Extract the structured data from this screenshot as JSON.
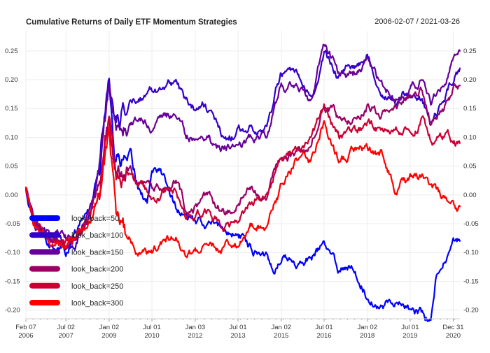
{
  "chart_data": {
    "type": "line",
    "title": "Cumulative Returns of Daily ETF Momentum Strategies",
    "date_range": "2006-02-07 / 2021-03-26",
    "xlabel": "",
    "ylabel": "",
    "ylim": [
      -0.215,
      0.285
    ],
    "y_ticks": [
      {
        "value": -0.2,
        "label": "-0.20"
      },
      {
        "value": -0.15,
        "label": "-0.15"
      },
      {
        "value": -0.1,
        "label": "-0.10"
      },
      {
        "value": -0.05,
        "label": "-0.05"
      },
      {
        "value": 0.0,
        "label": "0.00"
      },
      {
        "value": 0.05,
        "label": "0.05"
      },
      {
        "value": 0.1,
        "label": "0.10"
      },
      {
        "value": 0.15,
        "label": "0.15"
      },
      {
        "value": 0.2,
        "label": "0.20"
      },
      {
        "value": 0.25,
        "label": "0.25"
      }
    ],
    "x_start": "2006-02-07",
    "x_end": "2021-03-26",
    "x_ticks": [
      {
        "value": "2006-02-07",
        "line1": "Feb 07",
        "line2": "2006"
      },
      {
        "value": "2007-07-02",
        "line1": "Jul 02",
        "line2": "2007"
      },
      {
        "value": "2009-01-02",
        "line1": "Jan 02",
        "line2": "2009"
      },
      {
        "value": "2010-07-01",
        "line1": "Jul 01",
        "line2": "2010"
      },
      {
        "value": "2012-01-03",
        "line1": "Jan 03",
        "line2": "2012"
      },
      {
        "value": "2013-07-01",
        "line1": "Jul 01",
        "line2": "2013"
      },
      {
        "value": "2015-01-02",
        "line1": "Jan 02",
        "line2": "2015"
      },
      {
        "value": "2016-07-01",
        "line1": "Jul 01",
        "line2": "2016"
      },
      {
        "value": "2018-01-02",
        "line1": "Jan 02",
        "line2": "2018"
      },
      {
        "value": "2019-07-01",
        "line1": "Jul 01",
        "line2": "2019"
      },
      {
        "value": "2020-12-31",
        "line1": "Dec 31",
        "line2": "2020"
      }
    ],
    "legend_position": "bottom-left",
    "grid": true,
    "series": [
      {
        "name": "look_back=50",
        "color": "#0000ff",
        "points": [
          [
            "2006-02-07",
            0.01
          ],
          [
            "2006-05-01",
            -0.04
          ],
          [
            "2006-09-01",
            -0.07
          ],
          [
            "2007-01-02",
            -0.08
          ],
          [
            "2007-07-02",
            -0.1
          ],
          [
            "2007-11-01",
            -0.07
          ],
          [
            "2008-05-01",
            -0.02
          ],
          [
            "2008-09-01",
            0.05
          ],
          [
            "2008-11-20",
            0.17
          ],
          [
            "2009-01-02",
            0.21
          ],
          [
            "2009-03-10",
            0.08
          ],
          [
            "2009-07-01",
            0.06
          ],
          [
            "2010-01-04",
            0.01
          ],
          [
            "2010-05-01",
            -0.01
          ],
          [
            "2010-07-01",
            0.04
          ],
          [
            "2010-10-01",
            0.04
          ],
          [
            "2011-01-03",
            0.02
          ],
          [
            "2011-05-02",
            -0.02
          ],
          [
            "2011-09-01",
            -0.04
          ],
          [
            "2012-01-03",
            -0.05
          ],
          [
            "2012-07-02",
            -0.05
          ],
          [
            "2013-01-02",
            -0.06
          ],
          [
            "2013-07-01",
            -0.07
          ],
          [
            "2014-01-02",
            -0.09
          ],
          [
            "2014-07-01",
            -0.1
          ],
          [
            "2014-10-01",
            -0.13
          ],
          [
            "2015-01-02",
            -0.1
          ],
          [
            "2015-07-01",
            -0.12
          ],
          [
            "2016-01-04",
            -0.11
          ],
          [
            "2016-07-01",
            -0.09
          ],
          [
            "2017-01-03",
            -0.13
          ],
          [
            "2017-07-03",
            -0.12
          ],
          [
            "2018-01-02",
            -0.17
          ],
          [
            "2018-07-02",
            -0.19
          ],
          [
            "2019-01-02",
            -0.18
          ],
          [
            "2019-07-01",
            -0.2
          ],
          [
            "2019-12-01",
            -0.21
          ],
          [
            "2020-03-20",
            -0.22
          ],
          [
            "2020-06-01",
            -0.14
          ],
          [
            "2020-12-31",
            -0.09
          ],
          [
            "2021-03-26",
            -0.08
          ]
        ]
      },
      {
        "name": "look_back=100",
        "color": "#3300cc",
        "points": [
          [
            "2006-02-07",
            0.01
          ],
          [
            "2006-06-01",
            -0.04
          ],
          [
            "2006-09-01",
            -0.06
          ],
          [
            "2007-01-02",
            -0.07
          ],
          [
            "2007-07-02",
            -0.09
          ],
          [
            "2007-11-01",
            -0.08
          ],
          [
            "2008-05-01",
            -0.03
          ],
          [
            "2008-09-01",
            0.05
          ],
          [
            "2008-11-20",
            0.16
          ],
          [
            "2009-01-02",
            0.2
          ],
          [
            "2009-04-01",
            0.13
          ],
          [
            "2009-09-01",
            0.16
          ],
          [
            "2010-01-04",
            0.17
          ],
          [
            "2010-07-01",
            0.18
          ],
          [
            "2011-01-03",
            0.19
          ],
          [
            "2011-05-02",
            0.2
          ],
          [
            "2011-09-01",
            0.16
          ],
          [
            "2012-01-03",
            0.15
          ],
          [
            "2012-04-02",
            0.17
          ],
          [
            "2012-10-01",
            0.12
          ],
          [
            "2013-01-02",
            0.09
          ],
          [
            "2013-07-01",
            0.11
          ],
          [
            "2014-01-02",
            0.12
          ],
          [
            "2014-07-01",
            0.12
          ],
          [
            "2015-01-02",
            0.21
          ],
          [
            "2015-07-01",
            0.2
          ],
          [
            "2016-01-04",
            0.16
          ],
          [
            "2016-07-01",
            0.24
          ],
          [
            "2017-01-03",
            0.21
          ],
          [
            "2017-07-03",
            0.22
          ],
          [
            "2018-01-02",
            0.24
          ],
          [
            "2018-07-02",
            0.19
          ],
          [
            "2019-01-02",
            0.16
          ],
          [
            "2019-07-01",
            0.18
          ],
          [
            "2019-12-01",
            0.17
          ],
          [
            "2020-03-20",
            0.12
          ],
          [
            "2020-12-31",
            0.2
          ],
          [
            "2021-03-26",
            0.22
          ]
        ]
      },
      {
        "name": "look_back=150",
        "color": "#660099",
        "points": [
          [
            "2006-02-07",
            0.01
          ],
          [
            "2006-06-01",
            -0.05
          ],
          [
            "2006-09-01",
            -0.06
          ],
          [
            "2007-01-02",
            -0.07
          ],
          [
            "2007-07-02",
            -0.08
          ],
          [
            "2007-11-01",
            -0.07
          ],
          [
            "2008-05-01",
            -0.03
          ],
          [
            "2008-09-01",
            0.04
          ],
          [
            "2008-11-20",
            0.13
          ],
          [
            "2009-01-02",
            0.17
          ],
          [
            "2009-04-01",
            0.1
          ],
          [
            "2009-09-01",
            0.12
          ],
          [
            "2010-01-04",
            0.13
          ],
          [
            "2010-07-01",
            0.12
          ],
          [
            "2011-01-03",
            0.13
          ],
          [
            "2011-05-02",
            0.14
          ],
          [
            "2011-09-01",
            0.1
          ],
          [
            "2012-01-03",
            0.1
          ],
          [
            "2012-07-02",
            0.11
          ],
          [
            "2012-10-01",
            0.08
          ],
          [
            "2013-01-02",
            0.08
          ],
          [
            "2013-07-01",
            0.09
          ],
          [
            "2014-01-02",
            0.1
          ],
          [
            "2014-07-01",
            0.11
          ],
          [
            "2015-01-02",
            0.19
          ],
          [
            "2015-07-01",
            0.19
          ],
          [
            "2016-01-04",
            0.16
          ],
          [
            "2016-07-01",
            0.26
          ],
          [
            "2017-01-03",
            0.21
          ],
          [
            "2017-07-03",
            0.21
          ],
          [
            "2018-01-02",
            0.23
          ],
          [
            "2018-07-02",
            0.19
          ],
          [
            "2019-01-02",
            0.17
          ],
          [
            "2019-07-01",
            0.19
          ],
          [
            "2019-12-01",
            0.2
          ],
          [
            "2020-03-20",
            0.15
          ],
          [
            "2020-12-31",
            0.24
          ],
          [
            "2021-03-26",
            0.25
          ]
        ]
      },
      {
        "name": "look_back=200",
        "color": "#990066",
        "points": [
          [
            "2006-02-07",
            0.01
          ],
          [
            "2006-06-01",
            -0.05
          ],
          [
            "2006-09-01",
            -0.07
          ],
          [
            "2007-01-02",
            -0.08
          ],
          [
            "2007-07-02",
            -0.09
          ],
          [
            "2007-11-01",
            -0.08
          ],
          [
            "2008-05-01",
            -0.04
          ],
          [
            "2008-09-01",
            0.02
          ],
          [
            "2008-11-20",
            0.09
          ],
          [
            "2009-01-02",
            0.13
          ],
          [
            "2009-04-01",
            0.05
          ],
          [
            "2009-09-01",
            0.04
          ],
          [
            "2010-01-04",
            0.03
          ],
          [
            "2010-07-01",
            0.01
          ],
          [
            "2011-01-03",
            0.02
          ],
          [
            "2011-05-02",
            0.03
          ],
          [
            "2011-09-01",
            -0.02
          ],
          [
            "2012-01-03",
            -0.02
          ],
          [
            "2012-07-02",
            -0.01
          ],
          [
            "2013-01-02",
            -0.03
          ],
          [
            "2013-07-01",
            -0.02
          ],
          [
            "2014-01-02",
            0.01
          ],
          [
            "2014-07-01",
            0.01
          ],
          [
            "2015-01-02",
            0.06
          ],
          [
            "2015-07-01",
            0.07
          ],
          [
            "2016-01-04",
            0.08
          ],
          [
            "2016-07-01",
            0.16
          ],
          [
            "2017-01-03",
            0.13
          ],
          [
            "2017-07-03",
            0.14
          ],
          [
            "2018-01-02",
            0.16
          ],
          [
            "2018-07-02",
            0.14
          ],
          [
            "2019-01-02",
            0.15
          ],
          [
            "2019-07-01",
            0.16
          ],
          [
            "2019-12-01",
            0.18
          ],
          [
            "2020-03-20",
            0.12
          ],
          [
            "2020-12-31",
            0.18
          ],
          [
            "2021-03-26",
            0.19
          ]
        ]
      },
      {
        "name": "look_back=250",
        "color": "#cc0033",
        "points": [
          [
            "2006-02-07",
            0.01
          ],
          [
            "2006-06-01",
            -0.05
          ],
          [
            "2006-09-01",
            -0.07
          ],
          [
            "2007-01-02",
            -0.08
          ],
          [
            "2007-07-02",
            -0.09
          ],
          [
            "2007-11-01",
            -0.08
          ],
          [
            "2008-05-01",
            -0.04
          ],
          [
            "2008-09-01",
            0.02
          ],
          [
            "2008-11-20",
            0.1
          ],
          [
            "2009-01-02",
            0.14
          ],
          [
            "2009-04-01",
            0.04
          ],
          [
            "2009-09-01",
            0.03
          ],
          [
            "2010-01-04",
            0.01
          ],
          [
            "2010-07-01",
            -0.01
          ],
          [
            "2011-01-03",
            0.01
          ],
          [
            "2011-05-02",
            0.01
          ],
          [
            "2011-09-01",
            -0.04
          ],
          [
            "2012-01-03",
            -0.04
          ],
          [
            "2012-07-02",
            -0.03
          ],
          [
            "2013-01-02",
            -0.05
          ],
          [
            "2013-07-01",
            -0.04
          ],
          [
            "2014-01-02",
            -0.01
          ],
          [
            "2014-07-01",
            0.0
          ],
          [
            "2015-01-02",
            0.07
          ],
          [
            "2015-07-01",
            0.08
          ],
          [
            "2016-01-04",
            0.09
          ],
          [
            "2016-07-01",
            0.15
          ],
          [
            "2017-01-03",
            0.1
          ],
          [
            "2017-07-03",
            0.11
          ],
          [
            "2018-01-02",
            0.12
          ],
          [
            "2018-07-02",
            0.11
          ],
          [
            "2019-01-02",
            0.11
          ],
          [
            "2019-07-01",
            0.11
          ],
          [
            "2019-12-01",
            0.13
          ],
          [
            "2020-03-20",
            0.1
          ],
          [
            "2020-12-31",
            0.1
          ],
          [
            "2021-03-26",
            0.09
          ]
        ]
      },
      {
        "name": "look_back=300",
        "color": "#ff0000",
        "points": [
          [
            "2006-02-07",
            0.01
          ],
          [
            "2006-06-01",
            -0.06
          ],
          [
            "2006-09-01",
            -0.07
          ],
          [
            "2007-01-02",
            -0.08
          ],
          [
            "2007-07-02",
            -0.09
          ],
          [
            "2007-11-01",
            -0.08
          ],
          [
            "2008-05-01",
            -0.05
          ],
          [
            "2008-09-01",
            0.01
          ],
          [
            "2008-11-20",
            0.06
          ],
          [
            "2009-01-02",
            0.1
          ],
          [
            "2009-04-01",
            -0.03
          ],
          [
            "2009-09-01",
            -0.08
          ],
          [
            "2010-01-04",
            -0.1
          ],
          [
            "2010-07-01",
            -0.11
          ],
          [
            "2011-01-03",
            -0.08
          ],
          [
            "2011-05-02",
            -0.07
          ],
          [
            "2011-09-01",
            -0.11
          ],
          [
            "2012-01-03",
            -0.1
          ],
          [
            "2012-07-02",
            -0.09
          ],
          [
            "2013-01-02",
            -0.09
          ],
          [
            "2013-07-01",
            -0.08
          ],
          [
            "2014-01-02",
            -0.05
          ],
          [
            "2014-07-01",
            -0.05
          ],
          [
            "2015-01-02",
            0.01
          ],
          [
            "2015-07-01",
            0.06
          ],
          [
            "2016-01-04",
            0.06
          ],
          [
            "2016-07-01",
            0.13
          ],
          [
            "2017-01-03",
            0.06
          ],
          [
            "2017-07-03",
            0.07
          ],
          [
            "2018-01-02",
            0.08
          ],
          [
            "2018-07-02",
            0.07
          ],
          [
            "2019-01-02",
            0.01
          ],
          [
            "2019-07-01",
            0.03
          ],
          [
            "2019-12-01",
            0.03
          ],
          [
            "2020-03-20",
            0.0
          ],
          [
            "2020-12-31",
            -0.01
          ],
          [
            "2021-03-26",
            -0.02
          ]
        ]
      }
    ]
  }
}
